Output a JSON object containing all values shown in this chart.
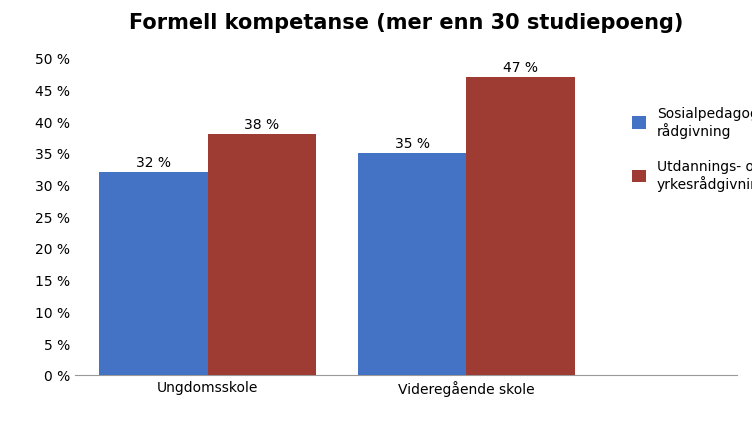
{
  "title": "Formell kompetanse (mer enn 30 studiepoeng)",
  "categories": [
    "Ungdomsskole",
    "Videregående skole"
  ],
  "series": [
    {
      "name": "Sosialpedagogisk\nrådgivning",
      "values": [
        0.32,
        0.35
      ],
      "color": "#4472C4"
    },
    {
      "name": "Utdannings- og\nyrkesrådgivning",
      "values": [
        0.38,
        0.47
      ],
      "color": "#9E3B32"
    }
  ],
  "labels": [
    [
      "32 %",
      "35 %"
    ],
    [
      "38 %",
      "47 %"
    ]
  ],
  "ylim": [
    0,
    0.525
  ],
  "yticks": [
    0.0,
    0.05,
    0.1,
    0.15,
    0.2,
    0.25,
    0.3,
    0.35,
    0.4,
    0.45,
    0.5
  ],
  "ytick_labels": [
    "0 %",
    "5 %",
    "10 %",
    "15 %",
    "20 %",
    "25 %",
    "30 %",
    "35 %",
    "40 %",
    "45 %",
    "50 %"
  ],
  "bar_width": 0.18,
  "group_centers": [
    0.22,
    0.65
  ],
  "title_fontsize": 15,
  "label_fontsize": 10,
  "tick_fontsize": 10,
  "legend_fontsize": 10,
  "background_color": "#ffffff"
}
